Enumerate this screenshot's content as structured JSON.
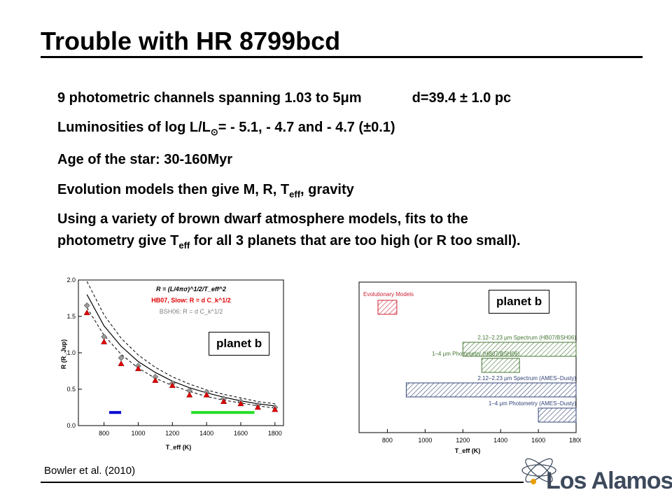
{
  "slide": {
    "title": "Trouble with HR 8799bcd",
    "bullets": {
      "b1_text": "9 photometric channels spanning 1.03 to 5μm",
      "b1_right": "d=39.4 ± 1.0 pc",
      "b2_pre": "Luminosities of log L/L",
      "b2_sub": "⊙",
      "b2_post": "= - 5.1, - 4.7 and - 4.7 (±0.1)",
      "b3": "Age of the star: 30-160Myr",
      "b4_pre": "Evolution models then give M, R, T",
      "b4_sub": "eff",
      "b4_post": ", gravity",
      "b5_line1": "Using a variety of brown dwarf atmosphere models, fits to the",
      "b5_pre": "photometry give T",
      "b5_sub": "eff",
      "b5_post": " for all 3 planets that are too high (or R too small)."
    },
    "left_panel_label": "planet b",
    "right_panel_label": "planet b",
    "citation": "Bowler et al. (2010)",
    "logo_text": "Los Alamos"
  },
  "chart_data": [
    {
      "type": "line",
      "xlabel": "T_eff (K)",
      "ylabel": "R (R_Jup)",
      "xlim": [
        650,
        1850
      ],
      "ylim": [
        0.0,
        2.0
      ],
      "x_ticks": [
        "800",
        "1000",
        "1200",
        "1400",
        "1600",
        "1800"
      ],
      "y_ticks": [
        "0.0",
        "0.5",
        "1.0",
        "1.5",
        "2.0"
      ],
      "legend": [
        "R = (L/4πσ)^1/2/T_eff^2",
        "HB07, Slow: R = d C_k^1/2",
        "BSH06: R = d C_k^1/2"
      ],
      "legend_colors": [
        "#000000",
        "#e00000",
        "#808080"
      ],
      "x": [
        700,
        800,
        900,
        1000,
        1100,
        1200,
        1300,
        1400,
        1500,
        1600,
        1700,
        1800
      ],
      "series": [
        {
          "name": "HB07, Slow: R = d C_k^1/2",
          "values": [
            1.55,
            1.15,
            0.85,
            0.78,
            0.62,
            0.55,
            0.42,
            0.42,
            0.33,
            0.3,
            0.25,
            0.22
          ]
        },
        {
          "name": "BSH06: R = d C_k^1/2",
          "values": [
            1.65,
            1.22,
            0.93,
            0.82,
            0.67,
            0.58,
            0.48,
            0.46,
            0.37,
            0.33,
            0.28,
            0.25
          ]
        }
      ],
      "curve_solid": [
        [
          700,
          1.8
        ],
        [
          800,
          1.37
        ],
        [
          900,
          1.09
        ],
        [
          1000,
          0.88
        ],
        [
          1100,
          0.73
        ],
        [
          1200,
          0.61
        ],
        [
          1300,
          0.52
        ],
        [
          1400,
          0.45
        ],
        [
          1500,
          0.39
        ],
        [
          1600,
          0.34
        ],
        [
          1700,
          0.3
        ],
        [
          1800,
          0.27
        ]
      ],
      "curve_upper": [
        [
          700,
          1.98
        ],
        [
          800,
          1.52
        ],
        [
          900,
          1.2
        ],
        [
          1000,
          0.97
        ],
        [
          1100,
          0.8
        ],
        [
          1200,
          0.67
        ],
        [
          1300,
          0.57
        ],
        [
          1400,
          0.49
        ],
        [
          1500,
          0.43
        ],
        [
          1600,
          0.38
        ],
        [
          1700,
          0.33
        ],
        [
          1800,
          0.3
        ]
      ],
      "curve_lower": [
        [
          700,
          1.62
        ],
        [
          800,
          1.24
        ],
        [
          900,
          0.98
        ],
        [
          1000,
          0.79
        ],
        [
          1100,
          0.65
        ],
        [
          1200,
          0.55
        ],
        [
          1300,
          0.47
        ],
        [
          1400,
          0.4
        ],
        [
          1500,
          0.35
        ],
        [
          1600,
          0.31
        ],
        [
          1700,
          0.27
        ],
        [
          1800,
          0.24
        ]
      ],
      "highlight_ranges": [
        {
          "color": "#0000d0",
          "x": [
            830,
            900
          ],
          "y": 0.18
        },
        {
          "color": "#22dd22",
          "x": [
            1310,
            1680
          ],
          "y": 0.18
        }
      ]
    },
    {
      "type": "bar",
      "xlabel": "T_eff (K)",
      "xlim": [
        650,
        1800
      ],
      "x_ticks": [
        "800",
        "1000",
        "1200",
        "1400",
        "1600",
        "1800"
      ],
      "categories": [
        "Evolutionary Models",
        "2.12–2.23 μm Spectrum (HB07/BSH06)",
        "1–4 μm Photometry (HB07/BSH06)",
        "2.12–2.23 μm Spectrum (AMES–Dusty)",
        "1–4 μm Photometry (AMES–Dusty)"
      ],
      "ranges": [
        [
          750,
          850
        ],
        [
          1200,
          1800
        ],
        [
          1300,
          1500
        ],
        [
          900,
          1800
        ],
        [
          1600,
          1800
        ]
      ],
      "colors": [
        "#cc2233",
        "#447733",
        "#447733",
        "#334477",
        "#334477"
      ]
    }
  ]
}
